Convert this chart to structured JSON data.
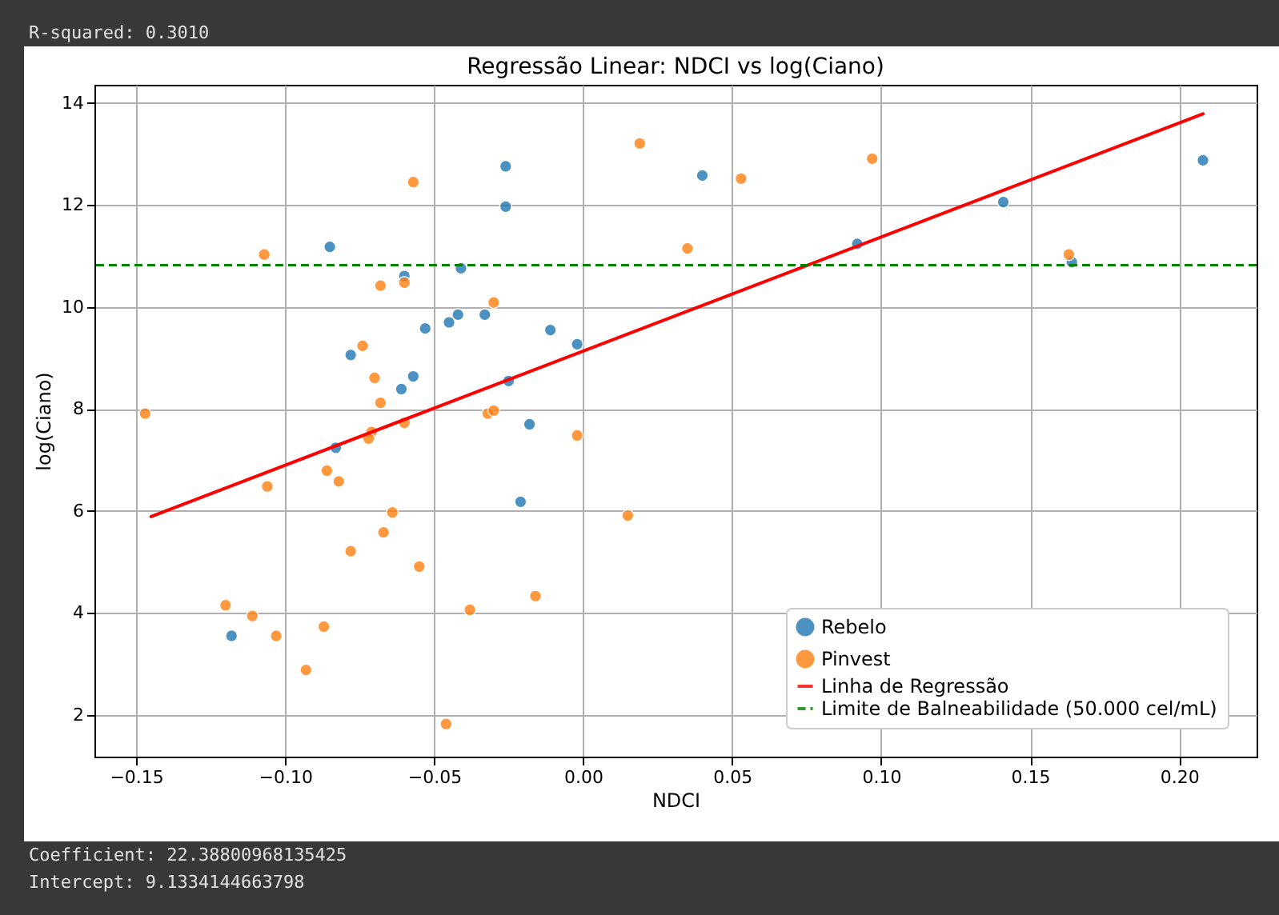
{
  "chart_data": {
    "type": "scatter",
    "title": "Regressão Linear: NDCI vs log(Ciano)",
    "xlabel": "NDCI",
    "ylabel": "log(Ciano)",
    "annotations": [
      "R-squared: 0.3010",
      "Coefficient: 22.38800968135425",
      "Intercept: 9.1334144663798"
    ],
    "xlim": [
      -0.164,
      0.226
    ],
    "ylim": [
      1.18,
      14.36
    ],
    "xticks": [
      {
        "value": -0.15,
        "label": "−0.15"
      },
      {
        "value": -0.1,
        "label": "−0.10"
      },
      {
        "value": -0.05,
        "label": "−0.05"
      },
      {
        "value": 0,
        "label": "0.00"
      },
      {
        "value": 0.05,
        "label": "0.05"
      },
      {
        "value": 0.1,
        "label": "0.10"
      },
      {
        "value": 0.15,
        "label": "0.15"
      },
      {
        "value": 0.2,
        "label": "0.20"
      }
    ],
    "yticks": [
      2,
      4,
      6,
      8,
      10,
      12,
      14
    ],
    "grid": true,
    "legend": "bottom right",
    "marker": "circle",
    "series": [
      {
        "name": "Rebelo",
        "color": "#1f77b4",
        "x": [
          -0.085,
          -0.078,
          -0.083,
          -0.118,
          -0.06,
          -0.041,
          -0.026,
          -0.026,
          -0.053,
          -0.045,
          -0.042,
          -0.033,
          -0.011,
          -0.002,
          -0.057,
          -0.061,
          -0.025,
          -0.018,
          -0.021,
          0.04,
          0.092,
          0.141,
          0.164,
          0.208
        ],
        "values": [
          11.18,
          9.06,
          7.24,
          3.55,
          10.61,
          10.76,
          12.76,
          11.97,
          9.58,
          9.7,
          9.85,
          9.85,
          9.55,
          9.27,
          8.64,
          8.39,
          8.55,
          7.7,
          6.18,
          12.58,
          11.24,
          12.06,
          10.88,
          12.88
        ]
      },
      {
        "name": "Pinvest",
        "color": "#ff7f0e",
        "x": [
          -0.107,
          -0.147,
          -0.106,
          -0.086,
          -0.12,
          -0.111,
          -0.103,
          -0.087,
          -0.093,
          -0.057,
          -0.068,
          -0.06,
          -0.03,
          -0.074,
          -0.07,
          -0.068,
          -0.06,
          -0.071,
          -0.072,
          -0.032,
          -0.03,
          -0.002,
          -0.082,
          -0.064,
          -0.067,
          -0.078,
          -0.055,
          -0.038,
          -0.016,
          -0.046,
          0.019,
          0.053,
          0.097,
          0.035,
          0.163,
          0.015
        ],
        "values": [
          11.03,
          7.91,
          6.48,
          6.79,
          4.15,
          3.94,
          3.55,
          3.73,
          2.88,
          12.45,
          10.42,
          10.48,
          10.09,
          9.24,
          8.61,
          8.12,
          7.73,
          7.55,
          7.42,
          7.91,
          7.97,
          7.48,
          6.58,
          5.97,
          5.58,
          5.21,
          4.91,
          4.06,
          4.33,
          1.82,
          13.21,
          12.52,
          12.91,
          11.15,
          11.03,
          5.91
        ]
      },
      {
        "name": "Linha de Regressão",
        "type": "line",
        "color": "#ff0000",
        "line_style": "solid",
        "marker": "none",
        "x": [
          -0.145,
          0.208
        ],
        "values": [
          5.89,
          13.79
        ]
      }
    ],
    "ref_lines": [
      {
        "axis": "y",
        "value": 10.82,
        "label": "Limite de Balneabilidade (50.000 cel/mL)",
        "color": "#008000",
        "line_style": "dashed"
      }
    ]
  }
}
